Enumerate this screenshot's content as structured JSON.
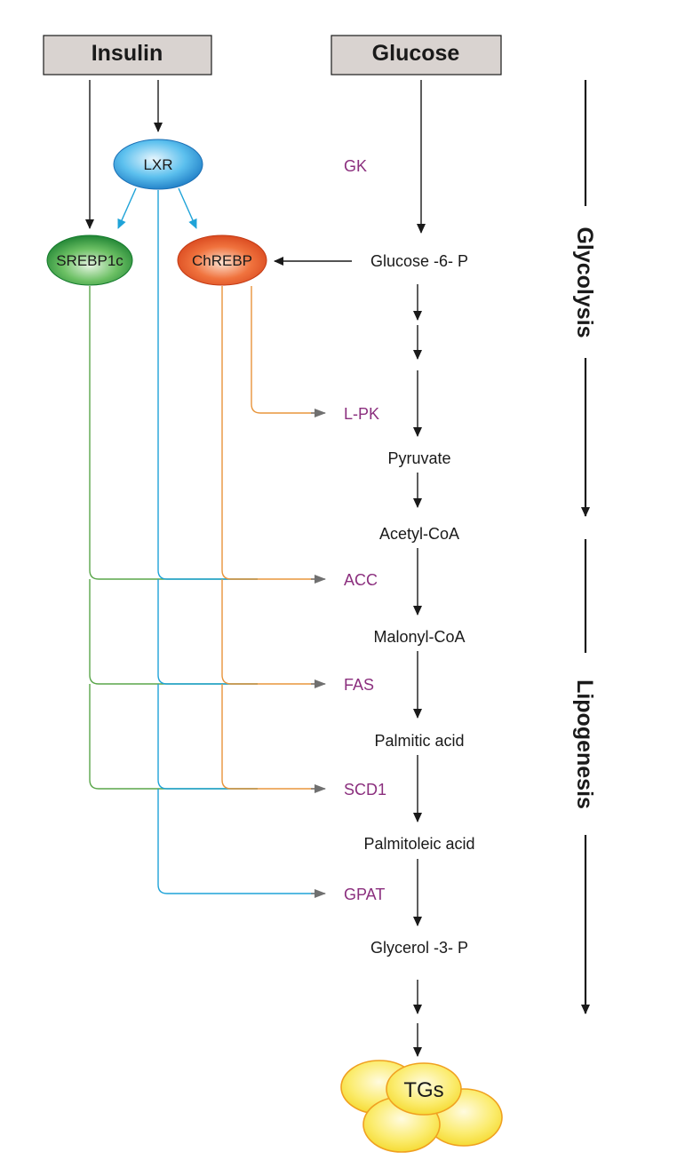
{
  "inputs": {
    "insulin": "Insulin",
    "glucose": "Glucose"
  },
  "regulators": {
    "lxr": "LXR",
    "srebp1c": "SREBP1c",
    "chrebp": "ChREBP"
  },
  "enzymes": {
    "gk": "GK",
    "lpk": "L-PK",
    "acc": "ACC",
    "fas": "FAS",
    "scd1": "SCD1",
    "gpat": "GPAT"
  },
  "metabolites": {
    "g6p": "Glucose -6- P",
    "pyruvate": "Pyruvate",
    "acetyl_coa": "Acetyl-CoA",
    "malonyl_coa": "Malonyl-CoA",
    "palmitic_acid": "Palmitic acid",
    "palmitoleic_acid": "Palmitoleic acid",
    "glycerol_3p": "Glycerol -3- P",
    "tgs": "TGs"
  },
  "phases": {
    "glycolysis": "Glycolysis",
    "lipogenesis": "Lipogenesis"
  },
  "colors": {
    "srebp_line": "#5aa64a",
    "lxr_line": "#1fa3d8",
    "chrebp_line": "#e8953c",
    "enzyme_text": "#8b2f7e",
    "box_fill": "#d9d3d0",
    "tg_fill": "#f7e24a",
    "tg_stroke": "#f0a020"
  }
}
